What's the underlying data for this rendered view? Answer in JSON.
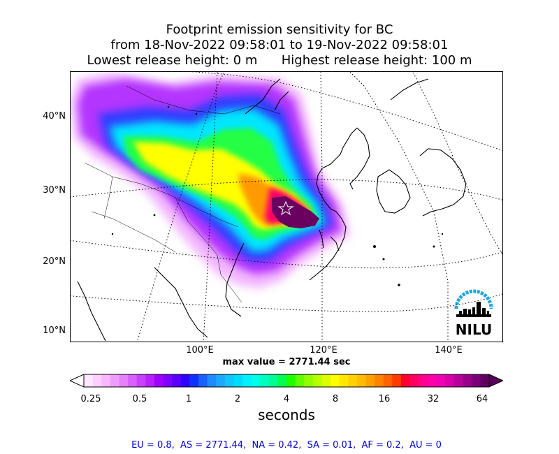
{
  "title": {
    "line1": "Footprint emission sensitivity for BC",
    "line2": "from 18-Nov-2022 09:58:01 to 19-Nov-2022 09:58:01",
    "line3": "Lowest release height: 0 m      Highest release height: 100 m"
  },
  "map": {
    "lat_labels": [
      "40°N",
      "30°N",
      "20°N",
      "10°N"
    ],
    "lon_labels": [
      "100°E",
      "120°E",
      "140°E"
    ],
    "max_value": "max value = 2771.44 sec",
    "logo_text": "NILU"
  },
  "colorbar": {
    "ticks": [
      "0.25",
      "0.5",
      "1",
      "2",
      "4",
      "8",
      "16",
      "32",
      "64"
    ],
    "unit": "seconds",
    "colors": [
      "#ffe8ff",
      "#ffd0ff",
      "#f7b8ff",
      "#f09cff",
      "#e680ff",
      "#d860ff",
      "#c840ff",
      "#b820ff",
      "#a000ff",
      "#8000ff",
      "#5a00ff",
      "#3000ff",
      "#1030ff",
      "#1860ff",
      "#1c8cff",
      "#1ca8ff",
      "#10c4ff",
      "#00dcff",
      "#00f0ff",
      "#00ffe8",
      "#00ffbe",
      "#00ff90",
      "#00ff50",
      "#20ff00",
      "#60ff00",
      "#90ff00",
      "#b8ff00",
      "#dcff00",
      "#ffff00",
      "#ffe800",
      "#ffd200",
      "#ffbc00",
      "#ffa000",
      "#ff8200",
      "#ff6200",
      "#ff3a00",
      "#ff0030",
      "#ff0060",
      "#ff0090",
      "#ff00a8",
      "#f000b0",
      "#d800a8",
      "#b8009c",
      "#98008c",
      "#7a0078",
      "#600060"
    ]
  },
  "footer": "EU = 0.8,  AS = 2771.44,  NA = 0.42,  SA = 0.01,  AF = 0.2,  AU = 0"
}
